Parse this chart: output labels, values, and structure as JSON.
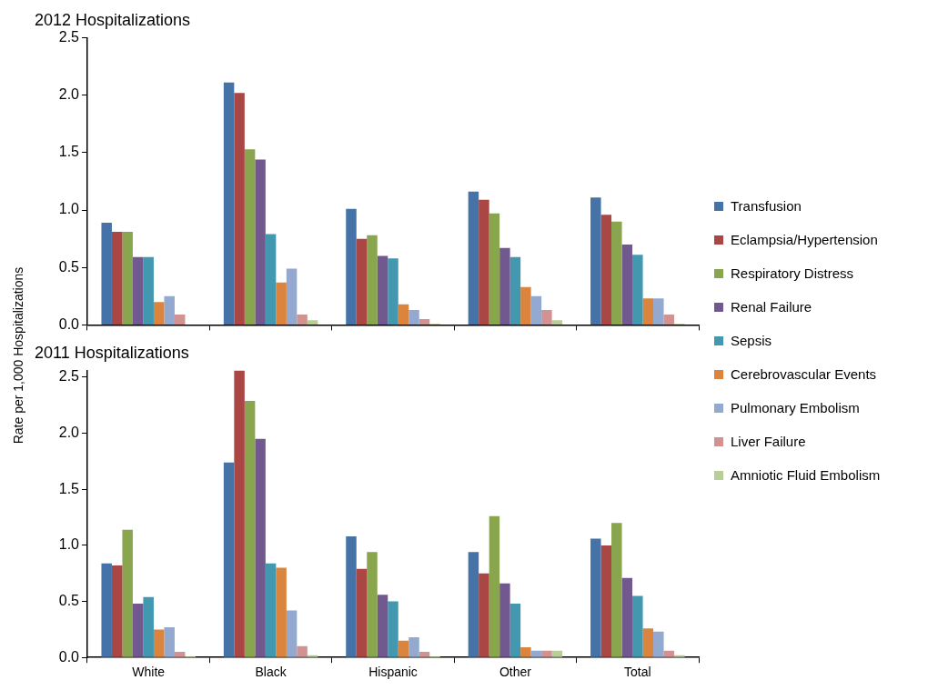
{
  "chart_data": [
    {
      "type": "bar",
      "title": "2012 Hospitalizations",
      "ylabel": "Rate per 1,000 Hospitalizations",
      "categories": [
        null,
        null,
        null,
        null,
        null
      ],
      "ylim": [
        0,
        2.5
      ],
      "yticks": [
        {
          "value": 0,
          "label": "0.0"
        },
        {
          "value": 0.5,
          "label": "0.5"
        },
        {
          "value": 1,
          "label": "1.0"
        },
        {
          "value": 1.5,
          "label": "1.5"
        },
        {
          "value": 2,
          "label": "2.0"
        },
        {
          "value": 2.5,
          "label": "2.5"
        }
      ],
      "grid": false,
      "legend": "right",
      "tick_labels": "y",
      "series": [
        {
          "name": "Transfusion",
          "color": "#4573a7",
          "values": [
            0.89,
            2.11,
            1.01,
            1.16,
            1.11
          ]
        },
        {
          "name": "Eclampsia/Hypertension",
          "color": "#aa4644",
          "values": [
            0.81,
            2.02,
            0.75,
            1.09,
            0.96
          ]
        },
        {
          "name": "Respiratory Distress",
          "color": "#89a54e",
          "values": [
            0.81,
            1.53,
            0.78,
            0.97,
            0.9
          ]
        },
        {
          "name": "Renal Failure",
          "color": "#71588f",
          "values": [
            0.59,
            1.44,
            0.6,
            0.67,
            0.7
          ]
        },
        {
          "name": "Sepsis",
          "color": "#4198af",
          "values": [
            0.59,
            0.79,
            0.58,
            0.59,
            0.61
          ]
        },
        {
          "name": "Cerebrovascular Events",
          "color": "#db843d",
          "values": [
            0.2,
            0.37,
            0.18,
            0.33,
            0.23
          ]
        },
        {
          "name": "Pulmonary Embolism",
          "color": "#93a9cf",
          "values": [
            0.25,
            0.49,
            0.13,
            0.25,
            0.23
          ]
        },
        {
          "name": "Liver Failure",
          "color": "#d19392",
          "values": [
            0.09,
            0.09,
            0.05,
            0.13,
            0.09
          ]
        },
        {
          "name": "Amniotic Fluid Embolism",
          "color": "#b9cd96",
          "values": [
            0,
            0.04,
            0.01,
            0.04,
            0.01
          ]
        }
      ]
    },
    {
      "type": "bar",
      "title": "2011 Hospitalizations",
      "categories": [
        "White",
        "Black",
        "Hispanic",
        "Other",
        "Total"
      ],
      "ylim": [
        0,
        2.56
      ],
      "yticks": [
        {
          "value": 0,
          "label": "0.0"
        },
        {
          "value": 0.5,
          "label": "0.5"
        },
        {
          "value": 1,
          "label": "1.0"
        },
        {
          "value": 1.5,
          "label": "1.5"
        },
        {
          "value": 2,
          "label": "2.0"
        },
        {
          "value": 2.5,
          "label": "2.5"
        }
      ],
      "grid": false,
      "series": [
        {
          "color": "#4573a7",
          "values": [
            0.84,
            1.74,
            1.08,
            0.94,
            1.06
          ]
        },
        {
          "color": "#aa4644",
          "values": [
            0.82,
            2.56,
            0.79,
            0.75,
            1.0
          ]
        },
        {
          "color": "#89a54e",
          "values": [
            1.14,
            2.29,
            0.94,
            1.26,
            1.2
          ]
        },
        {
          "color": "#71588f",
          "values": [
            0.48,
            1.95,
            0.56,
            0.66,
            0.71
          ]
        },
        {
          "color": "#4198af",
          "values": [
            0.54,
            0.84,
            0.5,
            0.48,
            0.55
          ]
        },
        {
          "color": "#db843d",
          "values": [
            0.25,
            0.8,
            0.15,
            0.09,
            0.26
          ]
        },
        {
          "color": "#93a9cf",
          "values": [
            0.27,
            0.42,
            0.18,
            0.06,
            0.23
          ]
        },
        {
          "color": "#d19392",
          "values": [
            0.05,
            0.1,
            0.05,
            0.06,
            0.06
          ]
        },
        {
          "color": "#b9cd96",
          "values": [
            0.01,
            0.02,
            0.01,
            0.06,
            0.02
          ]
        }
      ]
    }
  ]
}
